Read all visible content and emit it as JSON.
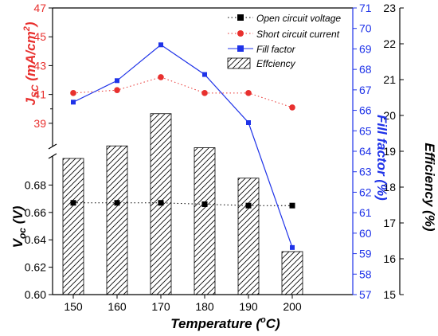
{
  "chart_data": {
    "type": "bar",
    "x": [
      150,
      160,
      170,
      180,
      190,
      200
    ],
    "xlabel": "Temperature (ᵒC)",
    "xlabel_parts": {
      "main": "Temperature (",
      "sup": "o",
      "tail": "C)"
    },
    "series": [
      {
        "name": "Open circuit voltage",
        "axis": "left-lower",
        "type": "scatter-dotted",
        "color": "#000000",
        "values": [
          0.667,
          0.667,
          0.667,
          0.666,
          0.665,
          0.665
        ]
      },
      {
        "name": "Short circuit current",
        "axis": "left-upper",
        "type": "scatter-dotted",
        "color": "#e8302e",
        "values": [
          41.1,
          41.3,
          42.2,
          41.1,
          41.1,
          40.1
        ]
      },
      {
        "name": "Fill factor",
        "axis": "right-inner",
        "type": "line",
        "color": "#1f33e8",
        "values": [
          66.4,
          67.45,
          69.2,
          67.75,
          65.4,
          59.3
        ]
      },
      {
        "name": "Effciency",
        "axis": "right-outer",
        "type": "bar-hatched",
        "color": "#000000",
        "values": [
          18.8,
          19.15,
          20.05,
          19.1,
          18.25,
          16.2
        ]
      }
    ],
    "axes": {
      "x": {
        "ticks": [
          "150",
          "160",
          "170",
          "180",
          "190",
          "200"
        ]
      },
      "left_upper": {
        "label": "JSC (mA/cm2)",
        "label_parts": {
          "main": "J",
          "sub": "SC",
          "mid": " (mA/cm",
          "sup": "2",
          "tail": ")"
        },
        "ticks": [
          "39",
          "41",
          "43",
          "45",
          "47"
        ],
        "range": [
          37.5,
          47
        ],
        "color": "#e8302e"
      },
      "left_lower": {
        "label": "Voc (V)",
        "label_parts": {
          "main": "V",
          "sub": "oc",
          "tail": " (V)"
        },
        "ticks": [
          "0.60",
          "0.62",
          "0.64",
          "0.66",
          "0.68"
        ],
        "range": [
          0.6,
          0.7
        ],
        "color": "#000000"
      },
      "right_inner": {
        "label": "Fill factor (%)",
        "ticks": [
          "57",
          "58",
          "59",
          "60",
          "61",
          "62",
          "63",
          "64",
          "65",
          "66",
          "67",
          "68",
          "69",
          "70",
          "71"
        ],
        "range": [
          57,
          71
        ],
        "color": "#1f33e8"
      },
      "right_outer": {
        "label": "Efficiency (%)",
        "ticks": [
          "15",
          "16",
          "17",
          "18",
          "19",
          "20",
          "21",
          "22",
          "23"
        ],
        "range": [
          15,
          23
        ],
        "color": "#000000"
      }
    },
    "legend_position": "top-right",
    "grid": false
  }
}
